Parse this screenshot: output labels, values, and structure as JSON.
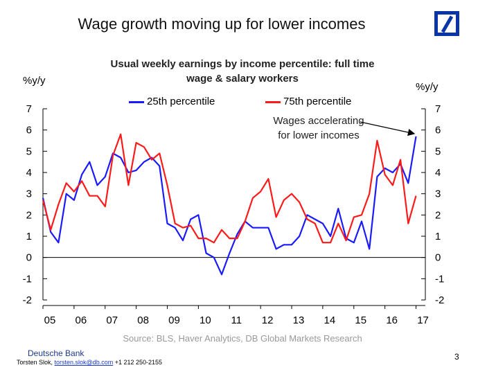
{
  "slide": {
    "title": "Wage growth moving up for lower incomes",
    "source": "Source: BLS, Haver Analytics, DB Global Markets Research",
    "footer_bank": "Deutsche Bank",
    "footer_name": "Torsten Slok, ",
    "footer_email": "torsten.slok@db.com",
    "footer_phone": " +1 212 250-2155",
    "page_number": "3"
  },
  "chart_data": {
    "type": "line",
    "title_line1": "Usual weekly earnings by income percentile: full time",
    "title_line2": "wage & salary workers",
    "ylabel_left": "%y/y",
    "ylabel_right": "%y/y",
    "ylim": [
      -2,
      7
    ],
    "yticks": [
      -2,
      -1,
      0,
      1,
      2,
      3,
      4,
      5,
      6,
      7
    ],
    "xlim": [
      2005,
      2017.3
    ],
    "xtick_labels": [
      "05",
      "06",
      "07",
      "08",
      "09",
      "10",
      "11",
      "12",
      "13",
      "14",
      "15",
      "16",
      "17"
    ],
    "annotation_line1": "Wages accelerating",
    "annotation_line2": "for lower incomes",
    "legend_position": "top",
    "series": [
      {
        "name": "25th percentile",
        "color": "#1a1aff",
        "x": [
          2005.0,
          2005.25,
          2005.5,
          2005.75,
          2006.0,
          2006.25,
          2006.5,
          2006.75,
          2007.0,
          2007.25,
          2007.5,
          2007.75,
          2008.0,
          2008.25,
          2008.5,
          2008.75,
          2009.0,
          2009.25,
          2009.5,
          2009.75,
          2010.0,
          2010.25,
          2010.5,
          2010.75,
          2011.0,
          2011.25,
          2011.5,
          2011.75,
          2012.0,
          2012.25,
          2012.5,
          2012.75,
          2013.0,
          2013.25,
          2013.5,
          2013.75,
          2014.0,
          2014.25,
          2014.5,
          2014.75,
          2015.0,
          2015.25,
          2015.5,
          2015.75,
          2016.0,
          2016.25,
          2016.5,
          2016.75,
          2017.0
        ],
        "values": [
          2.8,
          1.2,
          0.7,
          3.0,
          2.7,
          3.9,
          4.5,
          3.4,
          3.8,
          4.9,
          4.7,
          4.0,
          4.1,
          4.5,
          4.7,
          4.3,
          1.6,
          1.4,
          0.8,
          1.8,
          2.0,
          0.2,
          0.0,
          -0.8,
          0.2,
          1.1,
          1.7,
          1.4,
          1.4,
          1.4,
          0.4,
          0.6,
          0.6,
          1.0,
          2.0,
          1.8,
          1.6,
          1.0,
          2.3,
          0.9,
          0.7,
          1.7,
          0.4,
          3.8,
          4.2,
          4.0,
          4.4,
          3.5,
          5.7
        ]
      },
      {
        "name": "75th percentile",
        "color": "#ff1a1a",
        "x": [
          2005.0,
          2005.25,
          2005.5,
          2005.75,
          2006.0,
          2006.25,
          2006.5,
          2006.75,
          2007.0,
          2007.25,
          2007.5,
          2007.75,
          2008.0,
          2008.25,
          2008.5,
          2008.75,
          2009.0,
          2009.25,
          2009.5,
          2009.75,
          2010.0,
          2010.25,
          2010.5,
          2010.75,
          2011.0,
          2011.25,
          2011.5,
          2011.75,
          2012.0,
          2012.25,
          2012.5,
          2012.75,
          2013.0,
          2013.25,
          2013.5,
          2013.75,
          2014.0,
          2014.25,
          2014.5,
          2014.75,
          2015.0,
          2015.25,
          2015.5,
          2015.75,
          2016.0,
          2016.25,
          2016.5,
          2016.75,
          2017.0
        ],
        "values": [
          2.7,
          1.3,
          2.5,
          3.5,
          3.1,
          3.6,
          2.9,
          2.9,
          2.4,
          4.8,
          5.8,
          3.4,
          5.4,
          5.2,
          4.6,
          4.9,
          3.4,
          1.6,
          1.4,
          1.5,
          0.9,
          0.9,
          0.7,
          1.3,
          0.9,
          0.9,
          1.7,
          2.8,
          3.1,
          3.7,
          1.9,
          2.7,
          3.0,
          2.6,
          1.8,
          1.6,
          0.7,
          0.7,
          1.6,
          0.8,
          1.9,
          2.0,
          3.0,
          5.5,
          3.9,
          3.4,
          4.6,
          1.6,
          2.9
        ]
      }
    ]
  }
}
